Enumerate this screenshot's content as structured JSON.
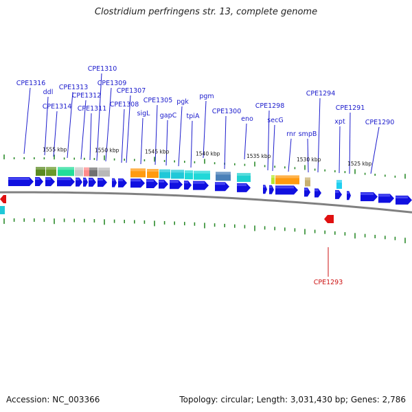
{
  "title": "Clostridium perfringens str. 13, complete genome",
  "footer": {
    "accession": "Accession: NC_003366",
    "summary": "Topology: circular; Length: 3,031,430 bp; Genes: 2,786"
  },
  "colors": {
    "label_forward": "#1a1acc",
    "label_reverse": "#cc1010",
    "gene_forward": "#1010e0",
    "gene_reverse": "#e01010",
    "backbone": "#808080",
    "tick": "#2a8a2a"
  },
  "scale_labels": [
    "1555 kbp",
    "1550 kbp",
    "1545 kbp",
    "1540 kbp",
    "1535 kbp",
    "1530 kbp",
    "1525 kbp"
  ],
  "gene_labels": [
    {
      "text": "CPE1316",
      "strand": "forward"
    },
    {
      "text": "ddl",
      "strand": "forward"
    },
    {
      "text": "CPE1314",
      "strand": "forward"
    },
    {
      "text": "CPE1313",
      "strand": "forward"
    },
    {
      "text": "CPE1312",
      "strand": "forward"
    },
    {
      "text": "CPE1311",
      "strand": "forward"
    },
    {
      "text": "CPE1310",
      "strand": "forward"
    },
    {
      "text": "CPE1309",
      "strand": "forward"
    },
    {
      "text": "CPE1308",
      "strand": "forward"
    },
    {
      "text": "CPE1307",
      "strand": "forward"
    },
    {
      "text": "sigL",
      "strand": "forward"
    },
    {
      "text": "CPE1305",
      "strand": "forward"
    },
    {
      "text": "gapC",
      "strand": "forward"
    },
    {
      "text": "pgk",
      "strand": "forward"
    },
    {
      "text": "tpiA",
      "strand": "forward"
    },
    {
      "text": "pgm",
      "strand": "forward"
    },
    {
      "text": "CPE1300",
      "strand": "forward"
    },
    {
      "text": "eno",
      "strand": "forward"
    },
    {
      "text": "CPE1298",
      "strand": "forward"
    },
    {
      "text": "secG",
      "strand": "forward"
    },
    {
      "text": "rnr",
      "strand": "forward"
    },
    {
      "text": "smpB",
      "strand": "forward"
    },
    {
      "text": "CPE1294",
      "strand": "forward"
    },
    {
      "text": "CPE1293",
      "strand": "reverse"
    },
    {
      "text": "xpt",
      "strand": "forward"
    },
    {
      "text": "CPE1291",
      "strand": "forward"
    },
    {
      "text": "CPE1290",
      "strand": "forward"
    }
  ]
}
